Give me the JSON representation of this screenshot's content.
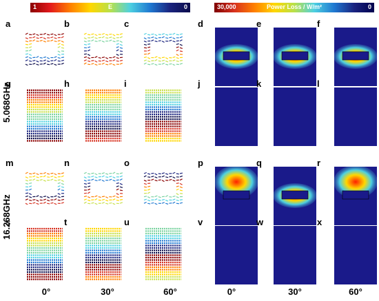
{
  "colorbar_e": {
    "min": "1",
    "label": "E",
    "max": "0"
  },
  "colorbar_p": {
    "min": "30,000",
    "label": "Power Loss / W/m²",
    "max": "0"
  },
  "frequencies": [
    "5.068GHz",
    "16.268GHz"
  ],
  "angles": [
    "0°",
    "30°",
    "60°",
    "0°",
    "30°",
    "60°"
  ],
  "panels": [
    "a",
    "b",
    "c",
    "d",
    "e",
    "f",
    "g",
    "h",
    "i",
    "j",
    "k",
    "l",
    "m",
    "n",
    "o",
    "p",
    "q",
    "r",
    "s",
    "t",
    "u",
    "v",
    "w",
    "x"
  ],
  "colors": {
    "dark_blue": "#1a1a8a",
    "red": "#e31a1c",
    "orange": "#ff7f00",
    "yellow": "#ffd700",
    "cyan": "#4dd0e1"
  }
}
